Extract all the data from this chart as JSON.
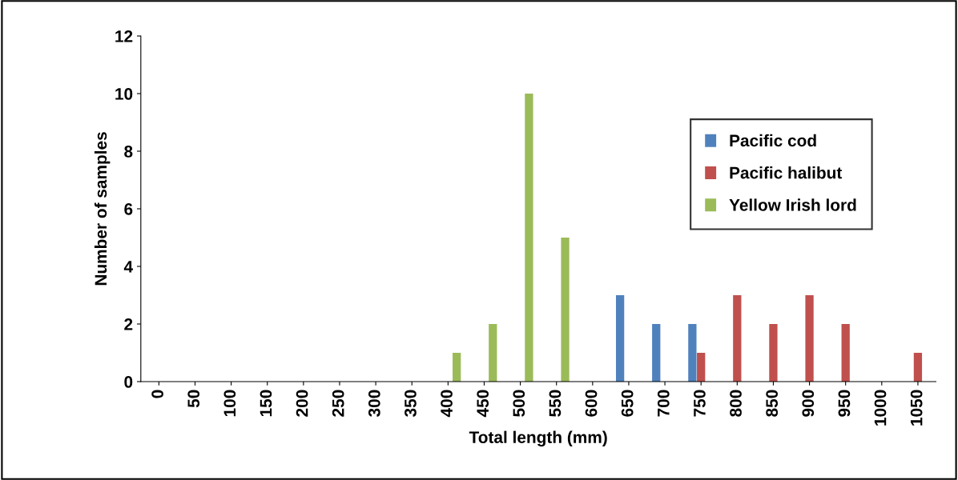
{
  "chart_data": {
    "type": "bar",
    "xlabel": "Total length (mm)",
    "ylabel": "Number of samples",
    "categories": [
      "0",
      "50",
      "100",
      "150",
      "200",
      "250",
      "300",
      "350",
      "400",
      "450",
      "500",
      "550",
      "600",
      "650",
      "700",
      "750",
      "800",
      "850",
      "900",
      "950",
      "1000",
      "1050"
    ],
    "series": [
      {
        "name": "Pacific cod",
        "color": "#4f81bd",
        "values": [
          0,
          0,
          0,
          0,
          0,
          0,
          0,
          0,
          0,
          0,
          0,
          0,
          0,
          3,
          2,
          2,
          0,
          0,
          0,
          0,
          0,
          0
        ]
      },
      {
        "name": "Pacific halibut",
        "color": "#c0504d",
        "values": [
          0,
          0,
          0,
          0,
          0,
          0,
          0,
          0,
          0,
          0,
          0,
          0,
          0,
          0,
          0,
          1,
          3,
          2,
          3,
          2,
          0,
          1
        ]
      },
      {
        "name": "Yellow Irish lord",
        "color": "#9bbb59",
        "values": [
          0,
          0,
          0,
          0,
          0,
          0,
          0,
          0,
          1,
          2,
          10,
          5,
          0,
          0,
          0,
          0,
          0,
          0,
          0,
          0,
          0,
          0
        ]
      }
    ],
    "ylim": [
      0,
      12
    ],
    "yticks": [
      0,
      2,
      4,
      6,
      8,
      10,
      12
    ],
    "grid": false,
    "legend": "right"
  }
}
